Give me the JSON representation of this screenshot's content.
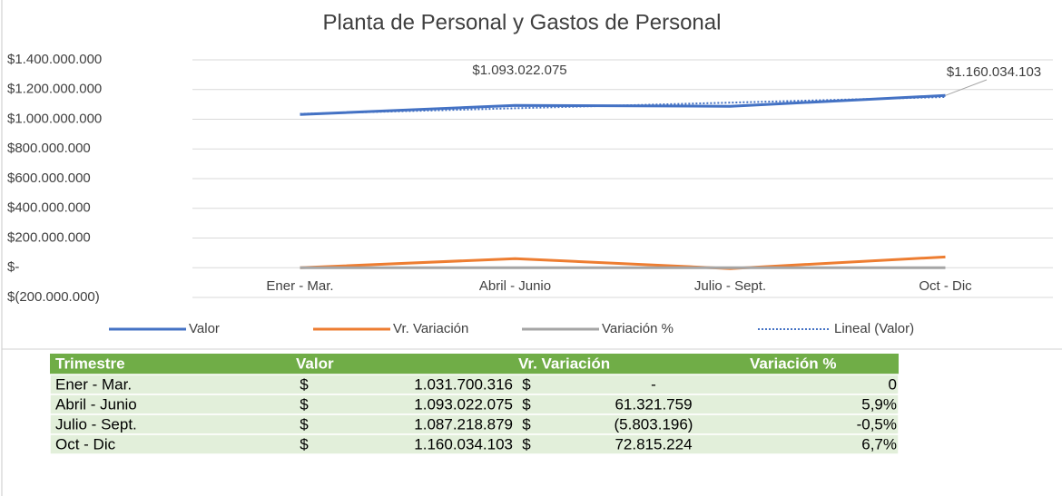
{
  "chart_data": {
    "type": "line",
    "title": "Planta de Personal y Gastos de Personal",
    "categories": [
      "Ener - Mar.",
      "Abril - Junio",
      "Julio - Sept.",
      "Oct - Dic"
    ],
    "series": [
      {
        "name": "Valor",
        "color": "#4472c4",
        "values": [
          1031700316,
          1093022075,
          1087218879,
          1160034103
        ],
        "value_labels": [
          null,
          "$1.093.022.075",
          null,
          "$1.160.034.103"
        ]
      },
      {
        "name": "Vr. Variación",
        "color": "#ed7d31",
        "values": [
          0,
          61321759,
          -5803196,
          72815224
        ]
      },
      {
        "name": "Variación %",
        "color": "#a5a5a5",
        "values": [
          0,
          5.9,
          -0.5,
          6.7
        ]
      },
      {
        "name": "Lineal (Valor)",
        "color": "#4472c4",
        "dashed": true,
        "values": [
          1036114118,
          1074034035,
          1111913652,
          1149873568
        ]
      }
    ],
    "ylim": [
      -200000000,
      1400000000
    ],
    "yticks": [
      {
        "value": -200000000,
        "label": "$(200.000.000)"
      },
      {
        "value": 0,
        "label": "$-"
      },
      {
        "value": 200000000,
        "label": "$200.000.000"
      },
      {
        "value": 400000000,
        "label": "$400.000.000"
      },
      {
        "value": 600000000,
        "label": "$600.000.000"
      },
      {
        "value": 800000000,
        "label": "$800.000.000"
      },
      {
        "value": 1000000000,
        "label": "$1.000.000.000"
      },
      {
        "value": 1200000000,
        "label": "$1.200.000.000"
      },
      {
        "value": 1400000000,
        "label": "$1.400.000.000"
      }
    ],
    "grid": true,
    "legend": "bottom"
  },
  "table": {
    "headers": [
      "Trimestre",
      "Valor",
      "Vr. Variación",
      "Variación %"
    ],
    "rows": [
      [
        "Ener - Mar.",
        "$",
        "1.031.700.316",
        "$",
        "-",
        "0"
      ],
      [
        "Abril - Junio",
        "$",
        "1.093.022.075",
        "$",
        "61.321.759",
        "5,9%"
      ],
      [
        "Julio - Sept.",
        "$",
        "1.087.218.879",
        "$",
        "(5.803.196)",
        "-0,5%"
      ],
      [
        "Oct - Dic",
        "$",
        "1.160.034.103",
        "$",
        "72.815.224",
        "6,7%"
      ]
    ]
  }
}
